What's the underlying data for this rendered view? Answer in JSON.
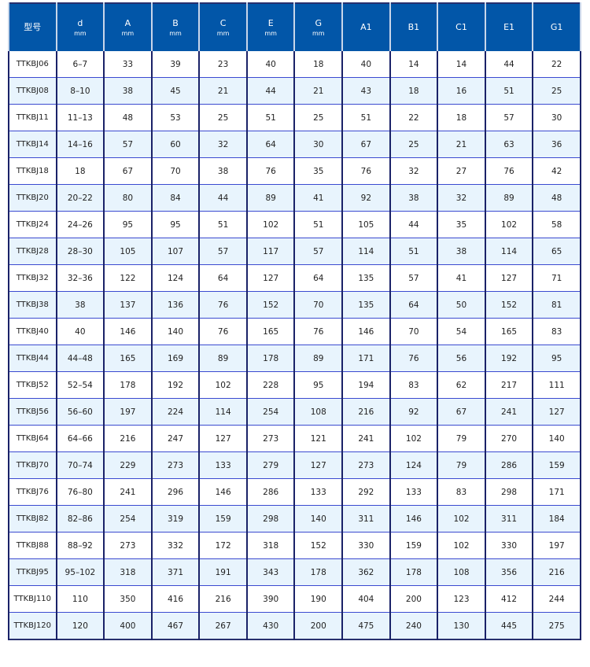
{
  "header": [
    {
      "label": "型号",
      "unit": ""
    },
    {
      "label": "d",
      "unit": "mm"
    },
    {
      "label": "A",
      "unit": "mm"
    },
    {
      "label": "B",
      "unit": "mm"
    },
    {
      "label": "C",
      "unit": "mm"
    },
    {
      "label": "E",
      "unit": "mm"
    },
    {
      "label": "G",
      "unit": "mm"
    },
    {
      "label": "A1",
      "unit": ""
    },
    {
      "label": "B1",
      "unit": ""
    },
    {
      "label": "C1",
      "unit": ""
    },
    {
      "label": "E1",
      "unit": ""
    },
    {
      "label": "G1",
      "unit": ""
    }
  ],
  "colors": {
    "header_bg": "#0256a8",
    "alt_row_bg": "#e8f4fd",
    "border": "#1a2268"
  },
  "rows": [
    [
      "TTKBJ06",
      "6–7",
      "33",
      "39",
      "23",
      "40",
      "18",
      "40",
      "14",
      "14",
      "44",
      "22"
    ],
    [
      "TTKBJ08",
      "8–10",
      "38",
      "45",
      "21",
      "44",
      "21",
      "43",
      "18",
      "16",
      "51",
      "25"
    ],
    [
      "TTKBJ11",
      "11–13",
      "48",
      "53",
      "25",
      "51",
      "25",
      "51",
      "22",
      "18",
      "57",
      "30"
    ],
    [
      "TTKBJ14",
      "14–16",
      "57",
      "60",
      "32",
      "64",
      "30",
      "67",
      "25",
      "21",
      "63",
      "36"
    ],
    [
      "TTKBJ18",
      "18",
      "67",
      "70",
      "38",
      "76",
      "35",
      "76",
      "32",
      "27",
      "76",
      "42"
    ],
    [
      "TTKBJ20",
      "20–22",
      "80",
      "84",
      "44",
      "89",
      "41",
      "92",
      "38",
      "32",
      "89",
      "48"
    ],
    [
      "TTKBJ24",
      "24–26",
      "95",
      "95",
      "51",
      "102",
      "51",
      "105",
      "44",
      "35",
      "102",
      "58"
    ],
    [
      "TTKBJ28",
      "28–30",
      "105",
      "107",
      "57",
      "117",
      "57",
      "114",
      "51",
      "38",
      "114",
      "65"
    ],
    [
      "TTKBJ32",
      "32–36",
      "122",
      "124",
      "64",
      "127",
      "64",
      "135",
      "57",
      "41",
      "127",
      "71"
    ],
    [
      "TTKBJ38",
      "38",
      "137",
      "136",
      "76",
      "152",
      "70",
      "135",
      "64",
      "50",
      "152",
      "81"
    ],
    [
      "TTKBJ40",
      "40",
      "146",
      "140",
      "76",
      "165",
      "76",
      "146",
      "70",
      "54",
      "165",
      "83"
    ],
    [
      "TTKBJ44",
      "44–48",
      "165",
      "169",
      "89",
      "178",
      "89",
      "171",
      "76",
      "56",
      "192",
      "95"
    ],
    [
      "TTKBJ52",
      "52–54",
      "178",
      "192",
      "102",
      "228",
      "95",
      "194",
      "83",
      "62",
      "217",
      "111"
    ],
    [
      "TTKBJ56",
      "56–60",
      "197",
      "224",
      "114",
      "254",
      "108",
      "216",
      "92",
      "67",
      "241",
      "127"
    ],
    [
      "TTKBJ64",
      "64–66",
      "216",
      "247",
      "127",
      "273",
      "121",
      "241",
      "102",
      "79",
      "270",
      "140"
    ],
    [
      "TTKBJ70",
      "70–74",
      "229",
      "273",
      "133",
      "279",
      "127",
      "273",
      "124",
      "79",
      "286",
      "159"
    ],
    [
      "TTKBJ76",
      "76–80",
      "241",
      "296",
      "146",
      "286",
      "133",
      "292",
      "133",
      "83",
      "298",
      "171"
    ],
    [
      "TTKBJ82",
      "82–86",
      "254",
      "319",
      "159",
      "298",
      "140",
      "311",
      "146",
      "102",
      "311",
      "184"
    ],
    [
      "TTKBJ88",
      "88–92",
      "273",
      "332",
      "172",
      "318",
      "152",
      "330",
      "159",
      "102",
      "330",
      "197"
    ],
    [
      "TTKBJ95",
      "95–102",
      "318",
      "371",
      "191",
      "343",
      "178",
      "362",
      "178",
      "108",
      "356",
      "216"
    ],
    [
      "TTKBJ110",
      "110",
      "350",
      "416",
      "216",
      "390",
      "190",
      "404",
      "200",
      "123",
      "412",
      "244"
    ],
    [
      "TTKBJ120",
      "120",
      "400",
      "467",
      "267",
      "430",
      "200",
      "475",
      "240",
      "130",
      "445",
      "275"
    ]
  ]
}
